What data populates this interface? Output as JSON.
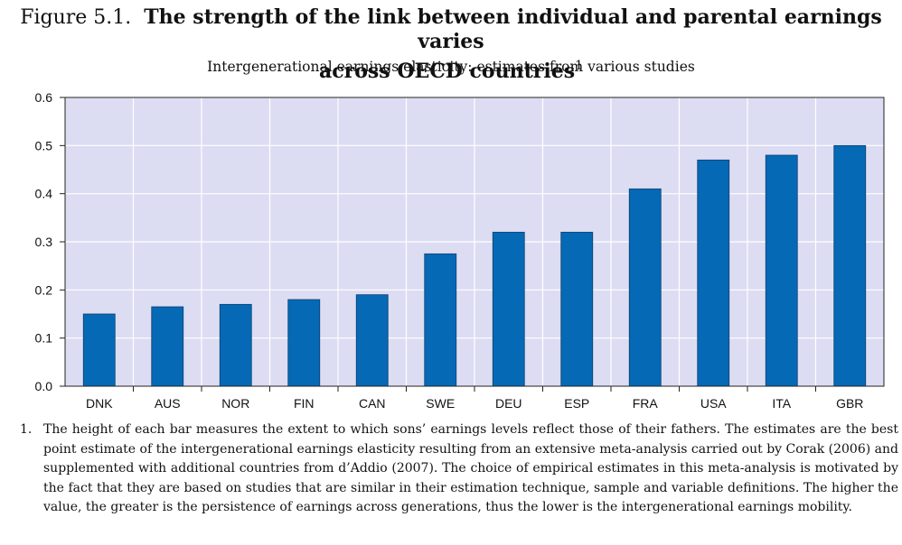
{
  "header": {
    "figure_label": "Figure 5.1.",
    "title_line1": "The strength of the link between individual and parental earnings varies",
    "title_line2": "across OECD countries",
    "title_footnote": "1",
    "subtitle": "Intergenerational earnings elasticity: estimates from various studies"
  },
  "colors": {
    "bar": "#0569b5",
    "plot_bg": "#dcdcf3",
    "grid": "#ffffff",
    "axis": "#222222"
  },
  "chart_data": {
    "type": "bar",
    "title": "Intergenerational earnings elasticity: estimates from various studies",
    "xlabel": "",
    "ylabel": "",
    "categories": [
      "DNK",
      "AUS",
      "NOR",
      "FIN",
      "CAN",
      "SWE",
      "DEU",
      "ESP",
      "FRA",
      "USA",
      "ITA",
      "GBR"
    ],
    "values": [
      0.15,
      0.165,
      0.17,
      0.18,
      0.19,
      0.275,
      0.32,
      0.32,
      0.41,
      0.47,
      0.48,
      0.5
    ],
    "ylim": [
      0,
      0.6
    ],
    "yticks": [
      "0.0",
      "0.1",
      "0.2",
      "0.3",
      "0.4",
      "0.5",
      "0.6"
    ],
    "grid": true,
    "legend": "none"
  },
  "note": {
    "number": "1.",
    "text": "The height of each bar measures the extent to which sons’ earnings levels reflect those of their fathers. The estimates are the best point estimate of the intergenerational earnings elasticity resulting from an extensive meta-analysis carried out by Corak (2006) and supplemented with additional countries from d’Addio (2007). The choice of empirical estimates in this meta-analysis is motivated by the fact that they are based on studies that are similar in their estimation technique, sample and variable definitions. The higher the value, the greater is the persistence of earnings across generations, thus the lower is the intergenerational earnings mobility."
  }
}
